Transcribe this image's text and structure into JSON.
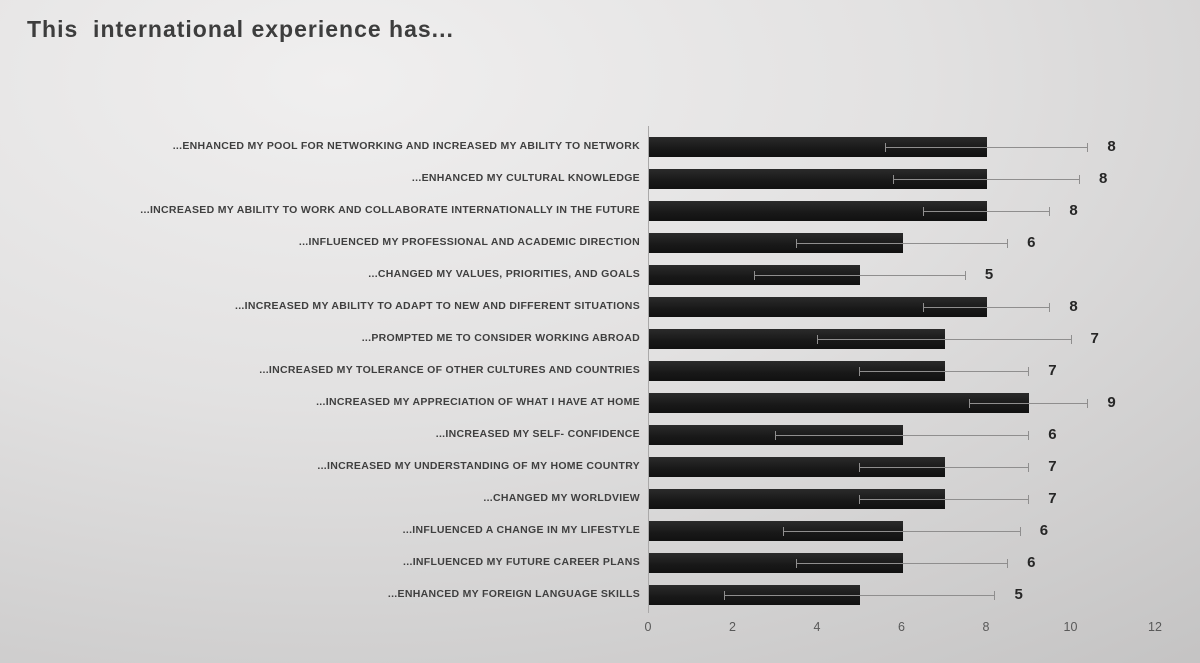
{
  "slide": {
    "title": "This  international experience has..."
  },
  "chart_data": {
    "type": "bar",
    "orientation": "horizontal",
    "title": "This  international experience has...",
    "categories": [
      "...ENHANCED MY POOL FOR NETWORKING AND INCREASED MY ABILITY TO NETWORK",
      "...ENHANCED MY CULTURAL KNOWLEDGE",
      "...INCREASED MY ABILITY TO WORK AND COLLABORATE INTERNATIONALLY IN THE FUTURE",
      "...INFLUENCED MY PROFESSIONAL AND ACADEMIC DIRECTION",
      "...CHANGED MY VALUES, PRIORITIES, AND GOALS",
      "...INCREASED MY ABILITY TO ADAPT TO NEW AND DIFFERENT SITUATIONS",
      "...PROMPTED ME TO CONSIDER WORKING ABROAD",
      "...INCREASED MY TOLERANCE OF OTHER CULTURES AND COUNTRIES",
      "...INCREASED MY APPRECIATION OF WHAT I HAVE AT HOME",
      "...INCREASED MY SELF- CONFIDENCE",
      "...INCREASED MY UNDERSTANDING OF MY HOME COUNTRY",
      "...CHANGED MY WORLDVIEW",
      "...INFLUENCED A CHANGE IN MY LIFESTYLE",
      "...INFLUENCED MY FUTURE CAREER PLANS",
      "...ENHANCED MY FOREIGN LANGUAGE SKILLS"
    ],
    "values": [
      8,
      8,
      8,
      6,
      5,
      8,
      7,
      7,
      9,
      6,
      7,
      7,
      6,
      6,
      5
    ],
    "errors": [
      2.4,
      2.2,
      1.5,
      2.5,
      2.5,
      1.5,
      3.0,
      2.0,
      1.4,
      3.0,
      2.0,
      2.0,
      2.8,
      2.5,
      3.2
    ],
    "data_labels": [
      "8",
      "8",
      "8",
      "6",
      "5",
      "8",
      "7",
      "7",
      "9",
      "6",
      "7",
      "7",
      "6",
      "6",
      "5"
    ],
    "xlabel": "",
    "ylabel": "",
    "xlim": [
      0,
      12
    ],
    "x_ticks": [
      0,
      2,
      4,
      6,
      8,
      10,
      12
    ],
    "grid": false,
    "legend": "none",
    "bar_color": "#1e1e1e",
    "error_bar_color": "#8f8e8e",
    "label_color": "#3f3f3f",
    "tick_color": "#595959",
    "background_color": "#d9d8d8"
  }
}
